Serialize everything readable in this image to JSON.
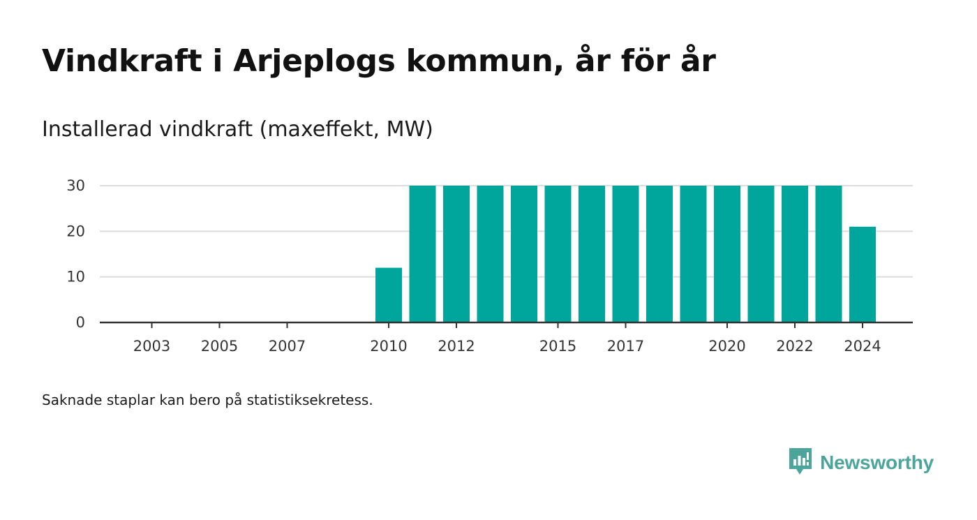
{
  "header": {
    "title": "Vindkraft i Arjeplogs kommun, år för år",
    "subtitle": "Installerad vindkraft (maxeffekt, MW)"
  },
  "footer": {
    "note": "Saknade staplar kan bero på statistiksekretess.",
    "brand": "Newsworthy",
    "brand_icon": "bar-chart-speech-bubble-icon"
  },
  "colors": {
    "bar": "#00a59b",
    "grid": "#dddddd",
    "axis": "#333333",
    "brand": "#4ba59b"
  },
  "chart_data": {
    "type": "bar",
    "x": [
      2003,
      2004,
      2005,
      2006,
      2007,
      2008,
      2009,
      2010,
      2011,
      2012,
      2013,
      2014,
      2015,
      2016,
      2017,
      2018,
      2019,
      2020,
      2021,
      2022,
      2023,
      2024
    ],
    "values": [
      0,
      0,
      0,
      0,
      0,
      0,
      0,
      12,
      30,
      30,
      30,
      30,
      30,
      30,
      30,
      30,
      30,
      30,
      30,
      30,
      30,
      21
    ],
    "x_tick_labels": [
      "2003",
      "2005",
      "2007",
      "2010",
      "2012",
      "2015",
      "2017",
      "2020",
      "2022",
      "2024"
    ],
    "y_ticks": [
      0,
      10,
      20,
      30
    ],
    "ylim": [
      0,
      30
    ],
    "xlabel": "",
    "ylabel": "",
    "grid": true,
    "legend": "none"
  }
}
